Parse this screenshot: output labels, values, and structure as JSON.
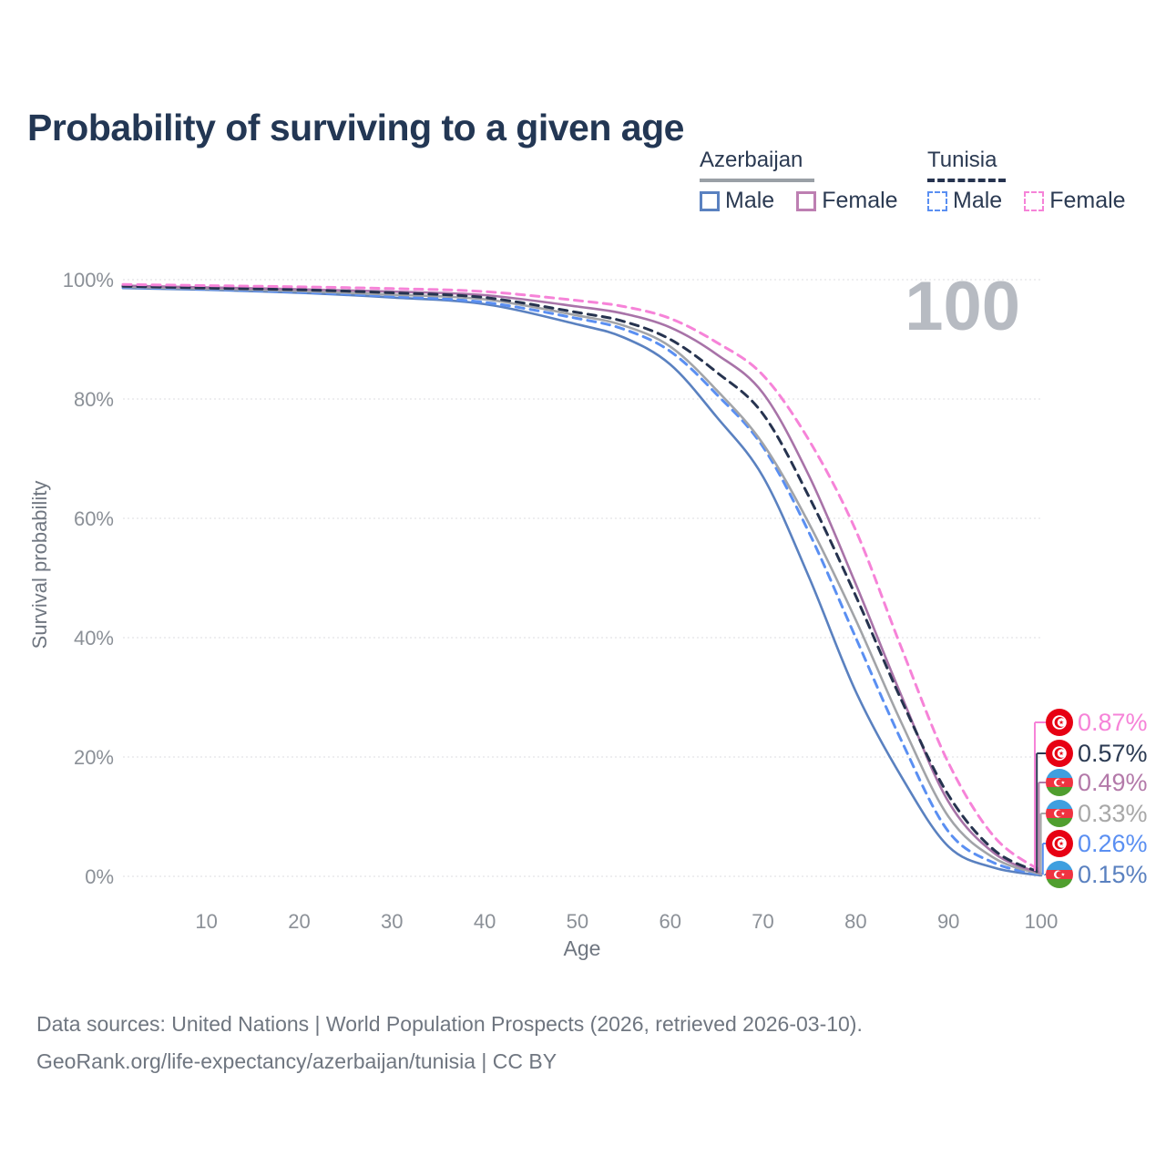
{
  "header": {
    "title": "Probability of surviving to a given age"
  },
  "legend": {
    "groups": [
      {
        "label": "Azerbaijan",
        "underline_style": "solid",
        "underline_color": "#9aa0a6",
        "items": [
          {
            "label": "Male",
            "box_color": "#5a81c0",
            "box_style": "solid"
          },
          {
            "label": "Female",
            "box_color": "#bd7fb2",
            "box_style": "solid"
          }
        ]
      },
      {
        "label": "Tunisia",
        "underline_style": "dashed",
        "underline_color": "#26334f",
        "items": [
          {
            "label": "Male",
            "box_color": "#5a8ff2",
            "box_style": "dashed"
          },
          {
            "label": "Female",
            "box_color": "#f683d8",
            "box_style": "dashed"
          }
        ]
      }
    ]
  },
  "chart": {
    "big_label": "100",
    "big_label_color": "#b7bbc2",
    "grid_color": "#e8e9ec",
    "tick_color": "#8b9097",
    "y_axis": {
      "label": "Survival probability",
      "ticks": [
        "100%",
        "80%",
        "60%",
        "40%",
        "20%",
        "0%"
      ],
      "tick_values": [
        100,
        80,
        60,
        40,
        20,
        0
      ]
    },
    "x_axis": {
      "label": "Age",
      "ticks": [
        10,
        20,
        30,
        40,
        50,
        60,
        70,
        80,
        90,
        100
      ]
    }
  },
  "chart_data": {
    "type": "line",
    "title": "Probability of surviving to a given age",
    "xlabel": "Age",
    "ylabel": "Survival probability",
    "x_range": [
      1,
      100
    ],
    "y_range_percent": [
      0,
      100
    ],
    "grid": "horizontal-only",
    "legend_position": "top-right",
    "x": [
      1,
      10,
      20,
      30,
      40,
      50,
      55,
      60,
      65,
      70,
      75,
      80,
      85,
      90,
      95,
      100
    ],
    "series": [
      {
        "name": "Tunisia Female",
        "country": "Tunisia",
        "sex": "Female",
        "color": "#f683d8",
        "dash": "dashed",
        "end_label": "0.87%",
        "flag": "tunisia",
        "values": [
          99.2,
          99.0,
          98.8,
          98.5,
          98.0,
          96.5,
          95.5,
          93.5,
          89.5,
          84.0,
          73.0,
          58.0,
          38.0,
          19.0,
          6.5,
          0.87
        ]
      },
      {
        "name": "Tunisia",
        "country": "Tunisia",
        "sex": "All",
        "color": "#26334f",
        "dash": "dashed",
        "end_label": "0.57%",
        "flag": "tunisia",
        "values": [
          98.9,
          98.6,
          98.3,
          97.8,
          97.0,
          94.5,
          93.0,
          90.0,
          84.5,
          77.5,
          63.5,
          47.0,
          29.3,
          13.6,
          4.3,
          0.57
        ]
      },
      {
        "name": "Azerbaijan Female",
        "country": "Azerbaijan",
        "sex": "Female",
        "color": "#a873a8",
        "dash": "solid",
        "end_label": "0.49%",
        "flag": "azerbaijan",
        "values": [
          99.0,
          98.7,
          98.4,
          98.0,
          97.4,
          95.5,
          94.3,
          92.0,
          87.5,
          81.0,
          67.0,
          49.0,
          30.0,
          12.5,
          3.8,
          0.49
        ]
      },
      {
        "name": "Azerbaijan",
        "country": "Azerbaijan",
        "sex": "All",
        "color": "#a2a4a8",
        "dash": "solid",
        "end_label": "0.33%",
        "flag": "azerbaijan",
        "values": [
          98.8,
          98.5,
          98.1,
          97.5,
          96.7,
          94.0,
          92.3,
          88.8,
          81.5,
          72.5,
          59.0,
          43.0,
          25.5,
          10.0,
          3.0,
          0.33
        ]
      },
      {
        "name": "Tunisia Male",
        "country": "Tunisia",
        "sex": "Male",
        "color": "#5a8ff2",
        "dash": "dashed",
        "end_label": "0.26%",
        "flag": "tunisia",
        "values": [
          98.7,
          98.4,
          97.9,
          97.2,
          96.2,
          93.5,
          91.7,
          88.0,
          80.8,
          72.0,
          57.5,
          40.0,
          22.5,
          7.5,
          2.2,
          0.26
        ]
      },
      {
        "name": "Azerbaijan Male",
        "country": "Azerbaijan",
        "sex": "Male",
        "color": "#5a81c0",
        "dash": "solid",
        "end_label": "0.15%",
        "flag": "azerbaijan",
        "values": [
          98.6,
          98.3,
          97.8,
          97.0,
          95.9,
          92.5,
          90.3,
          85.8,
          77.0,
          67.0,
          50.0,
          31.0,
          16.5,
          5.0,
          1.4,
          0.15
        ]
      }
    ],
    "end_labels": [
      {
        "text": "0.87%",
        "color": "#f683d8",
        "flag": "tunisia"
      },
      {
        "text": "0.57%",
        "color": "#2b3a52",
        "flag": "tunisia"
      },
      {
        "text": "0.49%",
        "color": "#b379a9",
        "flag": "azerbaijan"
      },
      {
        "text": "0.33%",
        "color": "#a8a8a8",
        "flag": "azerbaijan"
      },
      {
        "text": "0.26%",
        "color": "#5a8ff2",
        "flag": "tunisia"
      },
      {
        "text": "0.15%",
        "color": "#5a81c0",
        "flag": "azerbaijan"
      }
    ],
    "flag_colors": {
      "tunisia_red": "#e70013",
      "azerbaijan_blue": "#3f9fdf",
      "azerbaijan_red": "#ef3340",
      "azerbaijan_green": "#509e2f"
    }
  },
  "footer": {
    "line1": "Data sources: United Nations | World Population Prospects (2026, retrieved 2026-03-10).",
    "line2": "GeoRank.org/life-expectancy/azerbaijan/tunisia | CC BY"
  }
}
